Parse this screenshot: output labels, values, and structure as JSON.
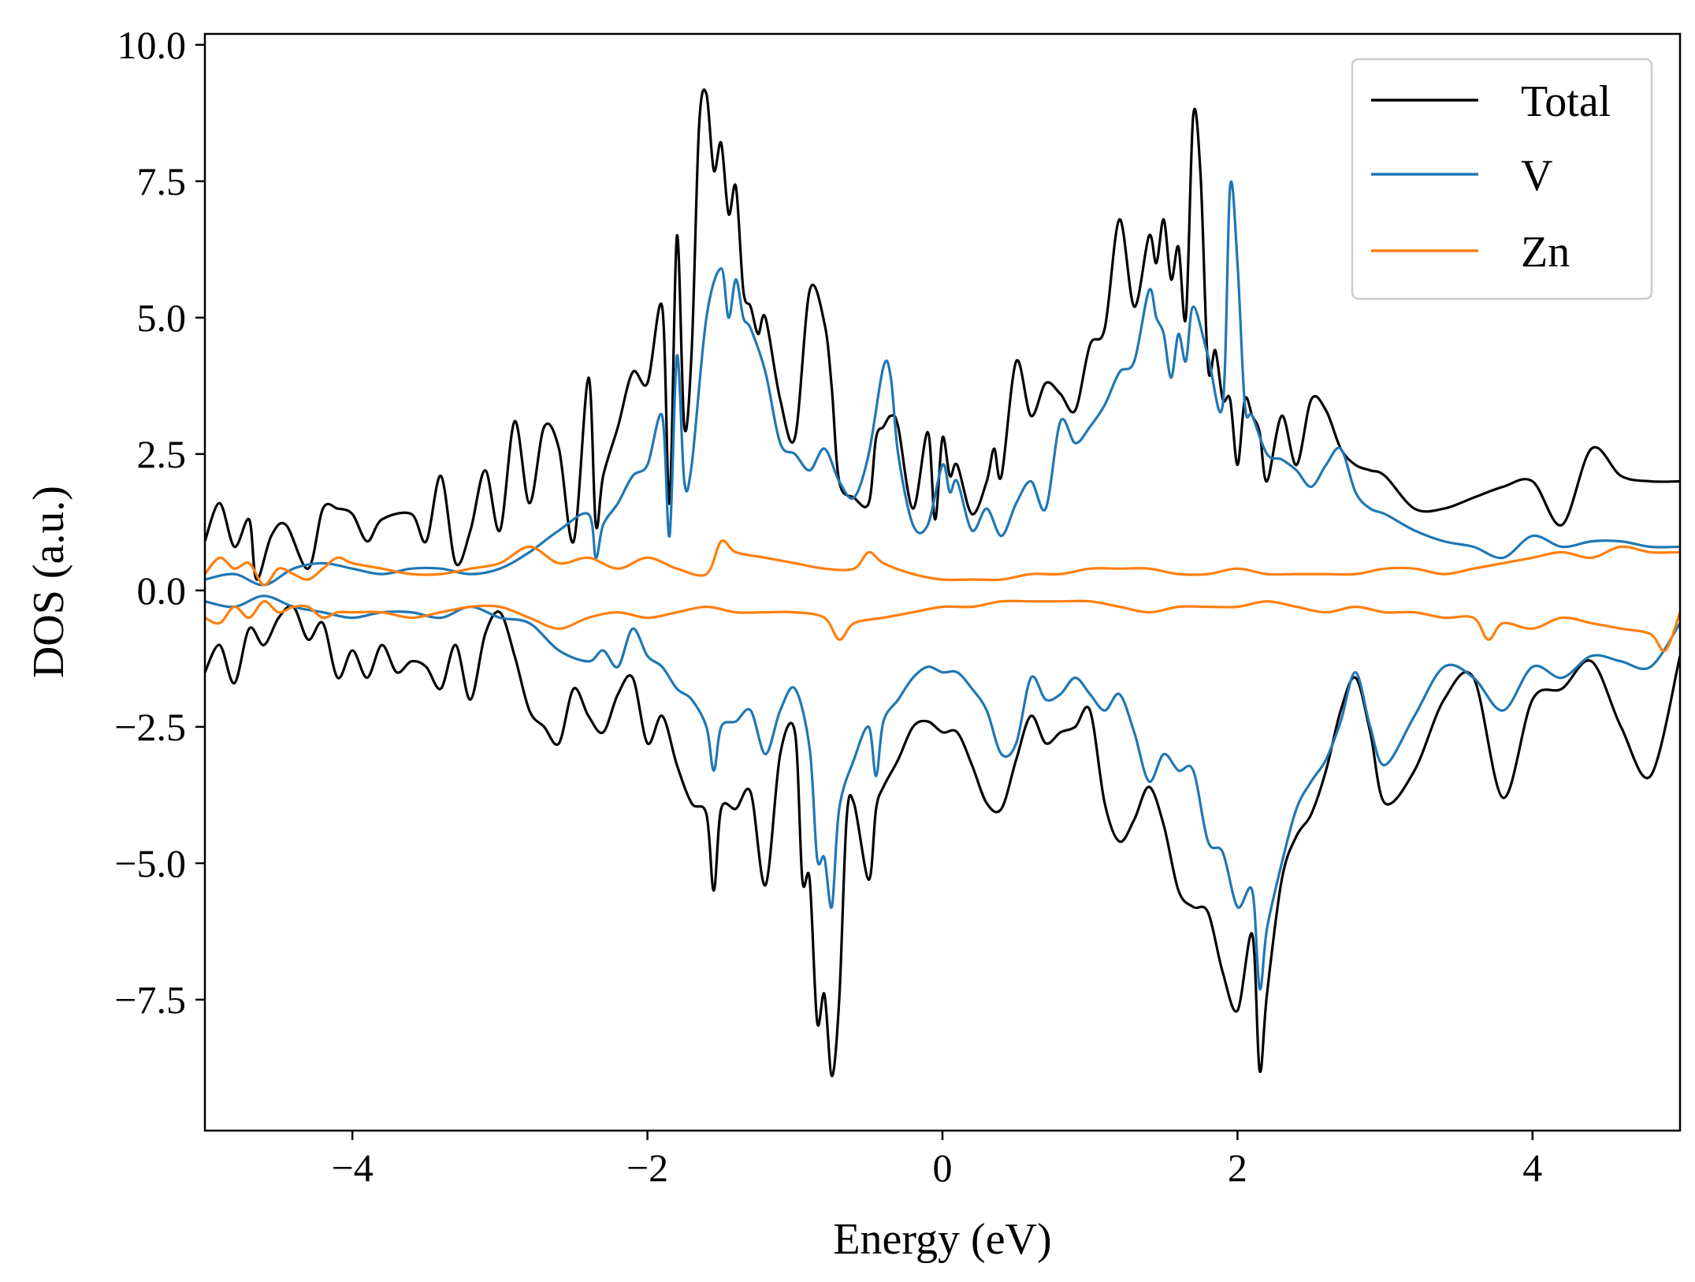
{
  "chart_data": {
    "type": "line",
    "xlabel": "Energy (eV)",
    "ylabel": "DOS (a.u.)",
    "xlim": [
      -5,
      5
    ],
    "ylim": [
      -9.9,
      10.2
    ],
    "xticks": [
      -4,
      -2,
      0,
      2,
      4
    ],
    "xtick_labels": [
      "−4",
      "−2",
      "0",
      "2",
      "4"
    ],
    "yticks": [
      10.0,
      7.5,
      5.0,
      2.5,
      0.0,
      -2.5,
      -5.0,
      -7.5
    ],
    "ytick_labels": [
      "10.0",
      "7.5",
      "5.0",
      "2.5",
      "0.0",
      "−2.5",
      "−5.0",
      "−7.5"
    ],
    "grid": false,
    "legend_position": "top-right",
    "series": [
      {
        "name": "Total",
        "color": "#000000",
        "spin_up": {
          "x": [
            -5.0,
            -4.9,
            -4.8,
            -4.7,
            -4.65,
            -4.55,
            -4.45,
            -4.3,
            -4.2,
            -4.1,
            -4.0,
            -3.9,
            -3.8,
            -3.6,
            -3.5,
            -3.4,
            -3.3,
            -3.2,
            -3.1,
            -3.0,
            -2.9,
            -2.8,
            -2.7,
            -2.6,
            -2.5,
            -2.4,
            -2.35,
            -2.3,
            -2.2,
            -2.1,
            -2.0,
            -1.9,
            -1.85,
            -1.8,
            -1.75,
            -1.7,
            -1.65,
            -1.6,
            -1.55,
            -1.5,
            -1.45,
            -1.4,
            -1.35,
            -1.3,
            -1.25,
            -1.2,
            -1.1,
            -1.0,
            -0.9,
            -0.8,
            -0.75,
            -0.7,
            -0.6,
            -0.5,
            -0.45,
            -0.4,
            -0.35,
            -0.3,
            -0.2,
            -0.1,
            -0.05,
            0.0,
            0.05,
            0.1,
            0.2,
            0.3,
            0.35,
            0.4,
            0.5,
            0.6,
            0.7,
            0.8,
            0.9,
            1.0,
            1.1,
            1.2,
            1.3,
            1.4,
            1.45,
            1.5,
            1.55,
            1.6,
            1.65,
            1.7,
            1.75,
            1.8,
            1.85,
            1.9,
            1.95,
            2.0,
            2.05,
            2.1,
            2.15,
            2.2,
            2.3,
            2.4,
            2.5,
            2.6,
            2.7,
            2.8,
            2.9,
            3.0,
            3.2,
            3.4,
            3.6,
            3.8,
            4.0,
            4.2,
            4.4,
            4.6,
            4.8,
            5.0
          ],
          "y": [
            0.9,
            1.6,
            0.8,
            1.3,
            0.2,
            1.0,
            1.2,
            0.4,
            1.5,
            1.5,
            1.4,
            0.9,
            1.3,
            1.4,
            0.9,
            2.1,
            0.5,
            1.1,
            2.2,
            1.1,
            3.1,
            1.6,
            3.0,
            2.6,
            0.9,
            3.9,
            1.2,
            2.1,
            3.0,
            4.0,
            3.8,
            5.2,
            1.6,
            6.5,
            3.0,
            4.4,
            8.5,
            9.1,
            7.7,
            8.2,
            6.9,
            7.4,
            5.5,
            5.2,
            4.7,
            5.0,
            3.5,
            2.8,
            5.5,
            4.9,
            3.7,
            2.0,
            1.7,
            1.6,
            2.8,
            3.0,
            3.2,
            3.0,
            1.5,
            2.9,
            1.3,
            2.8,
            2.1,
            2.3,
            1.4,
            2.0,
            2.6,
            2.1,
            4.2,
            3.2,
            3.8,
            3.6,
            3.3,
            4.5,
            4.8,
            6.8,
            5.2,
            6.5,
            6.0,
            6.8,
            5.7,
            6.3,
            5.0,
            8.7,
            7.6,
            4.1,
            4.4,
            3.5,
            3.5,
            2.3,
            3.5,
            3.2,
            2.9,
            2.0,
            3.2,
            2.3,
            3.5,
            3.3,
            2.6,
            2.3,
            2.2,
            2.1,
            1.5,
            1.5,
            1.7,
            1.9,
            2.0,
            1.2,
            2.6,
            2.1,
            2.0,
            2.0
          ]
        },
        "spin_down": {
          "x": [
            -5.0,
            -4.9,
            -4.8,
            -4.7,
            -4.6,
            -4.5,
            -4.4,
            -4.3,
            -4.2,
            -4.1,
            -4.0,
            -3.9,
            -3.8,
            -3.7,
            -3.6,
            -3.5,
            -3.4,
            -3.3,
            -3.2,
            -3.1,
            -3.0,
            -2.9,
            -2.8,
            -2.7,
            -2.6,
            -2.5,
            -2.4,
            -2.3,
            -2.2,
            -2.1,
            -2.0,
            -1.9,
            -1.8,
            -1.7,
            -1.6,
            -1.55,
            -1.5,
            -1.4,
            -1.3,
            -1.2,
            -1.1,
            -1.0,
            -0.95,
            -0.9,
            -0.85,
            -0.8,
            -0.75,
            -0.7,
            -0.65,
            -0.6,
            -0.5,
            -0.45,
            -0.4,
            -0.3,
            -0.2,
            -0.1,
            0.0,
            0.1,
            0.2,
            0.3,
            0.4,
            0.5,
            0.6,
            0.7,
            0.8,
            0.9,
            1.0,
            1.1,
            1.2,
            1.3,
            1.4,
            1.5,
            1.6,
            1.7,
            1.8,
            1.9,
            2.0,
            2.1,
            2.15,
            2.2,
            2.3,
            2.4,
            2.5,
            2.6,
            2.7,
            2.8,
            2.9,
            3.0,
            3.2,
            3.4,
            3.6,
            3.8,
            4.0,
            4.2,
            4.4,
            4.6,
            4.8,
            5.0
          ],
          "y": [
            -1.5,
            -1.0,
            -1.7,
            -0.7,
            -1.0,
            -0.5,
            -0.3,
            -0.9,
            -0.6,
            -1.6,
            -1.1,
            -1.6,
            -1.0,
            -1.5,
            -1.3,
            -1.4,
            -1.8,
            -1.0,
            -2.0,
            -0.8,
            -0.4,
            -1.2,
            -2.2,
            -2.5,
            -2.8,
            -1.8,
            -2.3,
            -2.6,
            -1.9,
            -1.6,
            -2.8,
            -2.3,
            -3.2,
            -3.9,
            -4.1,
            -5.5,
            -4.0,
            -4.0,
            -3.7,
            -5.4,
            -3.0,
            -2.6,
            -5.3,
            -5.3,
            -7.9,
            -7.4,
            -8.9,
            -7.5,
            -4.2,
            -3.9,
            -5.3,
            -4.0,
            -3.6,
            -3.1,
            -2.5,
            -2.4,
            -2.6,
            -2.6,
            -3.2,
            -3.9,
            -4.0,
            -3.1,
            -2.3,
            -2.8,
            -2.6,
            -2.5,
            -2.2,
            -3.9,
            -4.6,
            -4.2,
            -3.6,
            -4.3,
            -5.5,
            -5.8,
            -5.9,
            -7.0,
            -7.7,
            -6.3,
            -8.8,
            -7.4,
            -5.3,
            -4.5,
            -4.1,
            -3.3,
            -2.2,
            -1.6,
            -2.6,
            -3.9,
            -3.3,
            -2.0,
            -1.6,
            -3.8,
            -2.0,
            -1.8,
            -1.3,
            -2.5,
            -3.4,
            -1.2
          ]
        }
      },
      {
        "name": "V",
        "color": "#1f77b4",
        "spin_up": {
          "x": [
            -5.0,
            -4.8,
            -4.6,
            -4.4,
            -4.2,
            -4.0,
            -3.8,
            -3.6,
            -3.4,
            -3.2,
            -3.0,
            -2.8,
            -2.6,
            -2.4,
            -2.35,
            -2.3,
            -2.2,
            -2.1,
            -2.0,
            -1.9,
            -1.85,
            -1.8,
            -1.75,
            -1.7,
            -1.6,
            -1.5,
            -1.45,
            -1.4,
            -1.35,
            -1.3,
            -1.2,
            -1.1,
            -1.0,
            -0.9,
            -0.8,
            -0.7,
            -0.6,
            -0.5,
            -0.4,
            -0.35,
            -0.3,
            -0.2,
            -0.1,
            0.0,
            0.05,
            0.1,
            0.2,
            0.3,
            0.4,
            0.5,
            0.6,
            0.7,
            0.8,
            0.9,
            1.0,
            1.1,
            1.2,
            1.3,
            1.4,
            1.45,
            1.5,
            1.55,
            1.6,
            1.65,
            1.7,
            1.8,
            1.9,
            1.95,
            2.0,
            2.05,
            2.1,
            2.2,
            2.3,
            2.4,
            2.5,
            2.6,
            2.7,
            2.8,
            2.9,
            3.0,
            3.2,
            3.4,
            3.6,
            3.8,
            4.0,
            4.2,
            4.4,
            4.6,
            4.8,
            5.0
          ],
          "y": [
            0.2,
            0.3,
            0.1,
            0.4,
            0.5,
            0.4,
            0.3,
            0.4,
            0.4,
            0.3,
            0.4,
            0.7,
            1.1,
            1.4,
            0.6,
            1.2,
            1.6,
            2.1,
            2.3,
            3.2,
            1.0,
            4.3,
            2.0,
            2.3,
            5.0,
            5.9,
            5.0,
            5.7,
            5.0,
            4.8,
            4.0,
            2.7,
            2.5,
            2.2,
            2.6,
            2.0,
            1.7,
            2.5,
            4.1,
            3.9,
            2.5,
            1.2,
            1.2,
            2.3,
            1.8,
            2.0,
            1.1,
            1.5,
            1.0,
            1.6,
            2.0,
            1.5,
            3.1,
            2.7,
            3.0,
            3.4,
            4.0,
            4.2,
            5.5,
            5.0,
            4.7,
            3.9,
            4.7,
            4.2,
            5.2,
            4.3,
            3.4,
            7.4,
            6.0,
            3.4,
            3.2,
            2.5,
            2.4,
            2.2,
            1.9,
            2.3,
            2.6,
            1.8,
            1.5,
            1.4,
            1.1,
            0.9,
            0.8,
            0.6,
            1.0,
            0.8,
            0.9,
            0.9,
            0.8,
            0.8
          ]
        },
        "spin_down": {
          "x": [
            -5.0,
            -4.8,
            -4.6,
            -4.4,
            -4.2,
            -4.0,
            -3.8,
            -3.6,
            -3.4,
            -3.2,
            -3.0,
            -2.8,
            -2.6,
            -2.4,
            -2.3,
            -2.2,
            -2.1,
            -2.0,
            -1.9,
            -1.8,
            -1.7,
            -1.6,
            -1.55,
            -1.5,
            -1.4,
            -1.3,
            -1.2,
            -1.1,
            -1.0,
            -0.9,
            -0.85,
            -0.8,
            -0.75,
            -0.7,
            -0.6,
            -0.5,
            -0.45,
            -0.4,
            -0.3,
            -0.2,
            -0.1,
            0.0,
            0.1,
            0.2,
            0.3,
            0.4,
            0.5,
            0.6,
            0.7,
            0.8,
            0.9,
            1.0,
            1.1,
            1.2,
            1.3,
            1.4,
            1.5,
            1.6,
            1.7,
            1.8,
            1.9,
            2.0,
            2.1,
            2.15,
            2.2,
            2.3,
            2.4,
            2.5,
            2.6,
            2.7,
            2.8,
            2.9,
            3.0,
            3.2,
            3.4,
            3.6,
            3.8,
            4.0,
            4.2,
            4.4,
            4.6,
            4.8,
            5.0
          ],
          "y": [
            -0.2,
            -0.3,
            -0.1,
            -0.3,
            -0.4,
            -0.5,
            -0.4,
            -0.4,
            -0.5,
            -0.3,
            -0.5,
            -0.6,
            -1.1,
            -1.3,
            -1.1,
            -1.4,
            -0.7,
            -1.2,
            -1.4,
            -1.8,
            -2.0,
            -2.5,
            -3.3,
            -2.5,
            -2.4,
            -2.2,
            -3.0,
            -2.2,
            -1.8,
            -2.9,
            -4.9,
            -4.9,
            -5.8,
            -4.0,
            -3.1,
            -2.5,
            -3.4,
            -2.4,
            -2.0,
            -1.6,
            -1.4,
            -1.5,
            -1.5,
            -1.8,
            -2.2,
            -3.0,
            -2.8,
            -1.6,
            -2.0,
            -1.9,
            -1.6,
            -1.9,
            -2.2,
            -1.9,
            -2.6,
            -3.5,
            -3.0,
            -3.3,
            -3.3,
            -4.6,
            -4.8,
            -5.8,
            -5.5,
            -7.3,
            -6.2,
            -5.0,
            -4.0,
            -3.5,
            -3.1,
            -2.4,
            -1.5,
            -2.5,
            -3.2,
            -2.3,
            -1.4,
            -1.6,
            -2.2,
            -1.4,
            -1.6,
            -1.2,
            -1.3,
            -1.4,
            -0.6
          ]
        }
      },
      {
        "name": "Zn",
        "color": "#ff7f0e",
        "spin_up": {
          "x": [
            -5.0,
            -4.9,
            -4.8,
            -4.7,
            -4.6,
            -4.5,
            -4.4,
            -4.3,
            -4.2,
            -4.1,
            -4.0,
            -3.8,
            -3.6,
            -3.4,
            -3.2,
            -3.0,
            -2.8,
            -2.6,
            -2.4,
            -2.2,
            -2.0,
            -1.8,
            -1.6,
            -1.5,
            -1.4,
            -1.2,
            -1.0,
            -0.8,
            -0.6,
            -0.5,
            -0.4,
            -0.2,
            0.0,
            0.2,
            0.4,
            0.6,
            0.8,
            1.0,
            1.2,
            1.4,
            1.6,
            1.8,
            2.0,
            2.2,
            2.4,
            2.6,
            2.8,
            3.0,
            3.2,
            3.4,
            3.6,
            3.8,
            4.0,
            4.2,
            4.4,
            4.6,
            4.8,
            5.0
          ],
          "y": [
            0.3,
            0.6,
            0.4,
            0.5,
            0.1,
            0.4,
            0.3,
            0.2,
            0.4,
            0.6,
            0.5,
            0.4,
            0.3,
            0.3,
            0.4,
            0.5,
            0.8,
            0.5,
            0.6,
            0.4,
            0.6,
            0.4,
            0.3,
            0.9,
            0.7,
            0.6,
            0.5,
            0.4,
            0.4,
            0.7,
            0.5,
            0.3,
            0.2,
            0.2,
            0.2,
            0.3,
            0.3,
            0.4,
            0.4,
            0.4,
            0.3,
            0.3,
            0.4,
            0.3,
            0.3,
            0.3,
            0.3,
            0.4,
            0.4,
            0.3,
            0.4,
            0.5,
            0.6,
            0.7,
            0.6,
            0.8,
            0.7,
            0.7
          ]
        },
        "spin_down": {
          "x": [
            -5.0,
            -4.9,
            -4.8,
            -4.7,
            -4.6,
            -4.5,
            -4.4,
            -4.3,
            -4.2,
            -4.1,
            -4.0,
            -3.8,
            -3.6,
            -3.4,
            -3.2,
            -3.0,
            -2.8,
            -2.6,
            -2.4,
            -2.2,
            -2.0,
            -1.8,
            -1.6,
            -1.4,
            -1.2,
            -1.0,
            -0.8,
            -0.7,
            -0.6,
            -0.4,
            -0.2,
            0.0,
            0.2,
            0.4,
            0.6,
            0.8,
            1.0,
            1.2,
            1.4,
            1.6,
            1.8,
            2.0,
            2.2,
            2.4,
            2.6,
            2.8,
            3.0,
            3.2,
            3.4,
            3.6,
            3.7,
            3.8,
            4.0,
            4.2,
            4.4,
            4.6,
            4.8,
            4.9,
            5.0
          ],
          "y": [
            -0.5,
            -0.6,
            -0.3,
            -0.5,
            -0.2,
            -0.4,
            -0.3,
            -0.3,
            -0.5,
            -0.4,
            -0.4,
            -0.4,
            -0.5,
            -0.4,
            -0.3,
            -0.3,
            -0.5,
            -0.7,
            -0.5,
            -0.4,
            -0.5,
            -0.4,
            -0.3,
            -0.4,
            -0.4,
            -0.4,
            -0.5,
            -0.9,
            -0.6,
            -0.5,
            -0.4,
            -0.3,
            -0.3,
            -0.2,
            -0.2,
            -0.2,
            -0.2,
            -0.3,
            -0.4,
            -0.3,
            -0.3,
            -0.3,
            -0.2,
            -0.3,
            -0.4,
            -0.3,
            -0.4,
            -0.4,
            -0.5,
            -0.5,
            -0.9,
            -0.6,
            -0.7,
            -0.5,
            -0.6,
            -0.7,
            -0.8,
            -1.1,
            -0.4
          ]
        }
      }
    ]
  }
}
